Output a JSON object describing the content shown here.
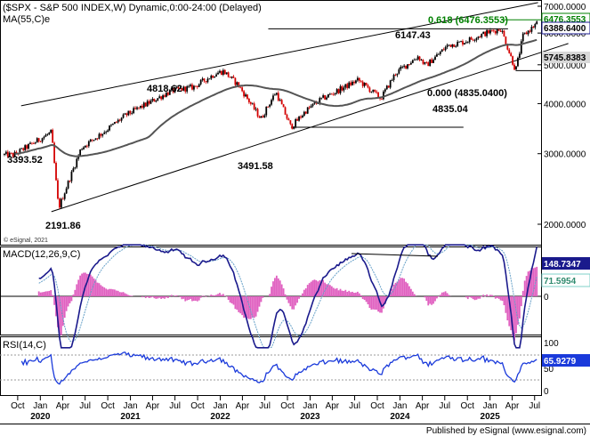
{
  "chart_data": {
    "type": "candlestick",
    "header": {
      "title": "($SPX - S&P 500 INDEX,W) Dynamic,0:00-24:00 (Delayed)",
      "ma_label": "MA(55,C)e",
      "watermark": "© eSignal, 2021",
      "footer": "Published by eSignal (www.esignal.com)"
    },
    "price_axis": {
      "ticks": [
        "7000.0000",
        "6000.0000",
        "5000.0000",
        "4000.0000",
        "3000.0000",
        "2000.0000"
      ],
      "tick_values": [
        7000,
        6000,
        5000,
        4000,
        3000,
        2000
      ],
      "range": [
        1450,
        7300
      ],
      "scale": "log",
      "current_price": "6388.6400",
      "ma_value": "5745.8383",
      "fib_tag": "6476.3553"
    },
    "annotations": {
      "fib_618": "0.618 (6476.3553)",
      "fib_000": "0.000 (4835.0400)",
      "points": [
        {
          "label": "3393.52",
          "value": 3393.52
        },
        {
          "label": "2191.86",
          "value": 2191.86
        },
        {
          "label": "4818.62",
          "value": 4818.62
        },
        {
          "label": "3491.58",
          "value": 3491.58
        },
        {
          "label": "6147.43",
          "value": 6147.43
        },
        {
          "label": "4835.04",
          "value": 4835.04
        }
      ]
    },
    "key_points": [
      {
        "date": "2019-09",
        "close": 2980
      },
      {
        "date": "2020-02",
        "close": 3393.52
      },
      {
        "date": "2020-03",
        "close": 2191.86
      },
      {
        "date": "2020-06",
        "close": 3100
      },
      {
        "date": "2020-09",
        "close": 3400
      },
      {
        "date": "2020-12",
        "close": 3750
      },
      {
        "date": "2021-06",
        "close": 4300
      },
      {
        "date": "2021-09",
        "close": 4400
      },
      {
        "date": "2021-12",
        "close": 4766
      },
      {
        "date": "2022-01",
        "close": 4818.62
      },
      {
        "date": "2022-03",
        "close": 4450
      },
      {
        "date": "2022-06",
        "close": 3666
      },
      {
        "date": "2022-08",
        "close": 4280
      },
      {
        "date": "2022-10",
        "close": 3491.58
      },
      {
        "date": "2022-12",
        "close": 3840
      },
      {
        "date": "2023-02",
        "close": 4100
      },
      {
        "date": "2023-07",
        "close": 4580
      },
      {
        "date": "2023-10",
        "close": 4120
      },
      {
        "date": "2023-12",
        "close": 4770
      },
      {
        "date": "2024-03",
        "close": 5250
      },
      {
        "date": "2024-04",
        "close": 4970
      },
      {
        "date": "2024-07",
        "close": 5600
      },
      {
        "date": "2024-09",
        "close": 5700
      },
      {
        "date": "2024-12",
        "close": 6000
      },
      {
        "date": "2025-02",
        "close": 6147.43
      },
      {
        "date": "2025-04",
        "close": 4835.04
      },
      {
        "date": "2025-05",
        "close": 5900
      },
      {
        "date": "2025-07",
        "close": 6388.64
      }
    ],
    "macd": {
      "label": "MACD(12,26,9,C)",
      "macd_value": "148.7347",
      "signal_value": "71.5954",
      "zero_label": "0"
    },
    "rsi": {
      "label": "RSI(14,C)",
      "value": "65.9279",
      "ticks": [
        "100",
        "50",
        "0"
      ]
    },
    "x_axis": {
      "months": [
        "Oct",
        "Jan",
        "Apr",
        "Jul",
        "Oct",
        "Jan",
        "Apr",
        "Jul",
        "Oct",
        "Jan",
        "Apr",
        "Jul",
        "Oct",
        "Jan",
        "Apr",
        "Jul",
        "Oct",
        "Jan",
        "Apr",
        "Jul",
        "Oct",
        "Jan",
        "Apr",
        "Jul"
      ],
      "years": [
        "2020",
        "2021",
        "2022",
        "2023",
        "2024",
        "2025"
      ]
    },
    "colors": {
      "up": "#000000",
      "down": "#d40000",
      "ma": "#555555",
      "macd": "#1a1a8c",
      "signal": "#66a0c8",
      "hist": "#e060c0",
      "rsi": "#1a3adb",
      "fib": "#008000",
      "price_tag": "#1a1a8c"
    }
  }
}
